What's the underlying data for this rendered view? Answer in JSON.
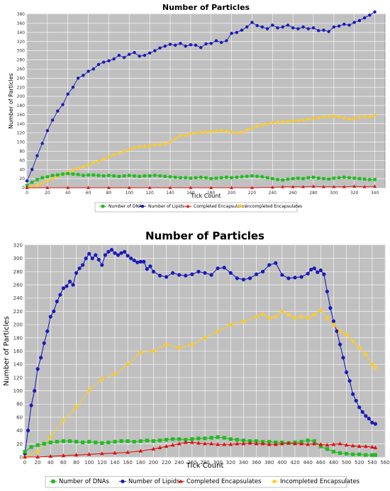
{
  "chart_data": [
    {
      "type": "line",
      "title": "Number of Particles",
      "xlabel": "Tick Count",
      "ylabel": "Number of Particles",
      "xlim": [
        0,
        350
      ],
      "ylim": [
        0,
        380
      ],
      "xticks": [
        "0",
        "20",
        "40",
        "60",
        "80",
        "100",
        "120",
        "140",
        "160",
        "180",
        "200",
        "220",
        "240",
        "260",
        "280",
        "300",
        "320",
        "340"
      ],
      "yticks": [
        "0",
        "20",
        "40",
        "60",
        "80",
        "100",
        "120",
        "140",
        "160",
        "180",
        "200",
        "220",
        "240",
        "260",
        "280",
        "300",
        "320",
        "340",
        "360",
        "380"
      ],
      "grid": true,
      "legend": "bottom",
      "series": [
        {
          "name": "Number of DNAs",
          "color": "#22bb22",
          "marker": "square",
          "x": [
            0,
            5,
            10,
            15,
            20,
            25,
            30,
            35,
            40,
            45,
            50,
            55,
            60,
            65,
            70,
            75,
            80,
            85,
            90,
            95,
            100,
            105,
            110,
            115,
            120,
            125,
            130,
            135,
            140,
            145,
            150,
            155,
            160,
            165,
            170,
            175,
            180,
            185,
            190,
            195,
            200,
            205,
            210,
            215,
            220,
            225,
            230,
            235,
            240,
            245,
            250,
            255,
            260,
            265,
            270,
            275,
            280,
            285,
            290,
            295,
            300,
            305,
            310,
            315,
            320,
            325,
            330,
            335,
            340
          ],
          "y": [
            5,
            12,
            18,
            22,
            24,
            27,
            28,
            30,
            31,
            30,
            29,
            27,
            28,
            28,
            27,
            26,
            27,
            26,
            25,
            26,
            27,
            26,
            25,
            26,
            26,
            27,
            26,
            25,
            24,
            23,
            22,
            22,
            21,
            22,
            23,
            22,
            20,
            21,
            22,
            23,
            22,
            23,
            24,
            25,
            26,
            25,
            24,
            22,
            20,
            18,
            17,
            19,
            20,
            21,
            20,
            22,
            23,
            21,
            20,
            19,
            21,
            22,
            23,
            22,
            21,
            20,
            19,
            18,
            18
          ]
        },
        {
          "name": "Number of Lipids",
          "color": "#1a1ab8",
          "marker": "circle",
          "x": [
            0,
            5,
            10,
            15,
            20,
            25,
            30,
            35,
            40,
            45,
            50,
            55,
            60,
            65,
            70,
            75,
            80,
            85,
            90,
            95,
            100,
            105,
            110,
            115,
            120,
            125,
            130,
            135,
            140,
            145,
            150,
            155,
            160,
            165,
            170,
            175,
            180,
            185,
            190,
            195,
            200,
            205,
            210,
            215,
            220,
            225,
            230,
            235,
            240,
            245,
            250,
            255,
            260,
            265,
            270,
            275,
            280,
            285,
            290,
            295,
            300,
            305,
            310,
            315,
            320,
            325,
            330,
            335,
            340
          ],
          "y": [
            15,
            40,
            70,
            97,
            125,
            148,
            168,
            182,
            205,
            220,
            240,
            246,
            255,
            260,
            270,
            275,
            278,
            282,
            290,
            285,
            292,
            296,
            288,
            290,
            295,
            300,
            306,
            310,
            314,
            312,
            316,
            310,
            313,
            312,
            307,
            315,
            316,
            322,
            318,
            322,
            338,
            340,
            345,
            352,
            362,
            355,
            352,
            348,
            356,
            350,
            352,
            356,
            350,
            348,
            352,
            348,
            350,
            344,
            345,
            342,
            352,
            354,
            358,
            356,
            362,
            366,
            372,
            378,
            385
          ]
        },
        {
          "name": "Completed Encapsulates",
          "color": "#dd1111",
          "marker": "triangle",
          "x": [
            0,
            20,
            40,
            60,
            80,
            100,
            120,
            140,
            160,
            180,
            200,
            220,
            240,
            250,
            260,
            270,
            280,
            290,
            300,
            310,
            320,
            330,
            340
          ],
          "y": [
            0,
            0,
            0,
            0,
            0,
            0,
            0,
            0,
            0,
            0,
            0,
            0,
            1,
            2,
            2,
            2,
            3,
            2,
            2,
            2,
            3,
            2,
            3
          ]
        },
        {
          "name": "Incompleted Encapsulates",
          "color": "#ffcc22",
          "marker": "circle",
          "x": [
            0,
            5,
            10,
            15,
            20,
            25,
            30,
            35,
            40,
            45,
            50,
            55,
            60,
            65,
            70,
            75,
            80,
            85,
            90,
            95,
            100,
            105,
            110,
            115,
            120,
            125,
            130,
            135,
            140,
            145,
            150,
            155,
            160,
            165,
            170,
            175,
            180,
            185,
            190,
            195,
            200,
            205,
            210,
            215,
            220,
            225,
            230,
            235,
            240,
            245,
            250,
            255,
            260,
            265,
            270,
            275,
            280,
            285,
            290,
            295,
            300,
            305,
            310,
            315,
            320,
            325,
            330,
            335,
            340
          ],
          "y": [
            0,
            2,
            5,
            10,
            15,
            20,
            25,
            30,
            35,
            38,
            42,
            46,
            50,
            55,
            58,
            63,
            68,
            72,
            76,
            80,
            84,
            88,
            90,
            91,
            92,
            94,
            95,
            96,
            100,
            108,
            114,
            115,
            118,
            120,
            121,
            122,
            123,
            124,
            125,
            124,
            122,
            120,
            122,
            126,
            130,
            135,
            138,
            140,
            142,
            143,
            144,
            145,
            146,
            147,
            148,
            150,
            152,
            153,
            155,
            156,
            157,
            155,
            153,
            150,
            152,
            154,
            156,
            155,
            158
          ]
        }
      ]
    },
    {
      "type": "line",
      "title": "Number of Particles",
      "xlabel": "Tick Count",
      "ylabel": "Number of Particles",
      "xlim": [
        0,
        560
      ],
      "ylim": [
        0,
        320
      ],
      "xticks": [
        "0",
        "20",
        "40",
        "60",
        "80",
        "100",
        "120",
        "140",
        "160",
        "180",
        "200",
        "220",
        "240",
        "260",
        "280",
        "300",
        "320",
        "340",
        "360",
        "380",
        "400",
        "420",
        "440",
        "460",
        "480",
        "500",
        "520",
        "540",
        "560"
      ],
      "yticks": [
        "0",
        "20",
        "40",
        "60",
        "80",
        "100",
        "120",
        "140",
        "160",
        "180",
        "200",
        "220",
        "240",
        "260",
        "280",
        "300",
        "320"
      ],
      "grid": true,
      "legend": "bottom",
      "series": [
        {
          "name": "Number of DNAs",
          "color": "#22bb22",
          "marker": "square",
          "x": [
            0,
            10,
            20,
            30,
            40,
            50,
            60,
            70,
            80,
            90,
            100,
            110,
            120,
            130,
            140,
            150,
            160,
            170,
            180,
            190,
            200,
            210,
            220,
            230,
            240,
            250,
            260,
            270,
            280,
            290,
            300,
            310,
            320,
            330,
            340,
            350,
            360,
            370,
            380,
            390,
            400,
            410,
            420,
            430,
            440,
            450,
            460,
            470,
            480,
            490,
            500,
            510,
            520,
            530,
            540,
            545
          ],
          "y": [
            8,
            15,
            18,
            20,
            22,
            23,
            24,
            24,
            23,
            22,
            23,
            22,
            21,
            22,
            23,
            24,
            24,
            23,
            24,
            25,
            24,
            25,
            26,
            27,
            27,
            26,
            27,
            28,
            28,
            29,
            30,
            29,
            27,
            26,
            25,
            24,
            24,
            23,
            23,
            22,
            22,
            21,
            22,
            23,
            25,
            24,
            16,
            12,
            8,
            6,
            5,
            4,
            4,
            3,
            3,
            3
          ]
        },
        {
          "name": "Number of Lipids",
          "color": "#1a1ab8",
          "marker": "circle",
          "x": [
            0,
            5,
            10,
            15,
            20,
            25,
            30,
            35,
            40,
            45,
            50,
            55,
            60,
            65,
            70,
            75,
            80,
            85,
            90,
            95,
            100,
            105,
            110,
            115,
            120,
            125,
            130,
            135,
            140,
            145,
            150,
            155,
            160,
            165,
            170,
            175,
            180,
            185,
            190,
            195,
            200,
            210,
            220,
            230,
            240,
            250,
            260,
            270,
            280,
            290,
            300,
            310,
            320,
            330,
            340,
            350,
            360,
            370,
            380,
            390,
            400,
            410,
            420,
            430,
            440,
            445,
            450,
            455,
            460,
            465,
            470,
            475,
            480,
            485,
            490,
            495,
            500,
            505,
            510,
            515,
            520,
            525,
            530,
            535,
            540,
            545
          ],
          "y": [
            5,
            40,
            78,
            100,
            133,
            150,
            172,
            190,
            212,
            220,
            235,
            245,
            255,
            258,
            265,
            260,
            278,
            285,
            290,
            300,
            307,
            300,
            305,
            298,
            290,
            305,
            310,
            313,
            308,
            305,
            308,
            310,
            304,
            300,
            297,
            294,
            295,
            295,
            284,
            288,
            280,
            274,
            272,
            278,
            275,
            274,
            276,
            280,
            278,
            275,
            285,
            286,
            278,
            270,
            268,
            270,
            276,
            280,
            290,
            293,
            275,
            270,
            271,
            272,
            277,
            283,
            285,
            279,
            282,
            276,
            250,
            225,
            205,
            190,
            170,
            150,
            128,
            115,
            95,
            85,
            75,
            68,
            62,
            58,
            52,
            50
          ]
        },
        {
          "name": "Completed Encapsulates",
          "color": "#dd1111",
          "marker": "triangle",
          "x": [
            0,
            20,
            40,
            60,
            80,
            100,
            120,
            140,
            160,
            180,
            200,
            210,
            220,
            230,
            240,
            250,
            260,
            270,
            280,
            290,
            300,
            310,
            320,
            330,
            340,
            350,
            360,
            370,
            380,
            390,
            400,
            410,
            420,
            430,
            440,
            450,
            460,
            470,
            480,
            490,
            500,
            510,
            520,
            530,
            540,
            545
          ],
          "y": [
            0,
            0,
            1,
            2,
            3,
            4,
            5,
            6,
            7,
            9,
            12,
            14,
            16,
            18,
            20,
            22,
            22,
            21,
            20,
            20,
            19,
            19,
            19,
            20,
            20,
            21,
            20,
            20,
            19,
            19,
            20,
            21,
            20,
            20,
            19,
            20,
            19,
            18,
            19,
            20,
            18,
            17,
            16,
            16,
            15,
            14
          ]
        },
        {
          "name": "Incompleted Encapsulates",
          "color": "#ffcc22",
          "marker": "circle",
          "x": [
            0,
            20,
            40,
            60,
            80,
            100,
            120,
            140,
            160,
            180,
            200,
            220,
            240,
            260,
            280,
            300,
            320,
            340,
            360,
            370,
            380,
            390,
            400,
            410,
            420,
            430,
            440,
            450,
            460,
            470,
            480,
            490,
            500,
            510,
            520,
            530,
            540,
            545
          ],
          "y": [
            0,
            8,
            30,
            55,
            75,
            100,
            118,
            125,
            140,
            158,
            160,
            170,
            165,
            170,
            180,
            190,
            200,
            205,
            212,
            216,
            210,
            212,
            220,
            215,
            210,
            212,
            210,
            215,
            222,
            210,
            200,
            190,
            185,
            175,
            165,
            155,
            140,
            135
          ]
        }
      ]
    }
  ]
}
